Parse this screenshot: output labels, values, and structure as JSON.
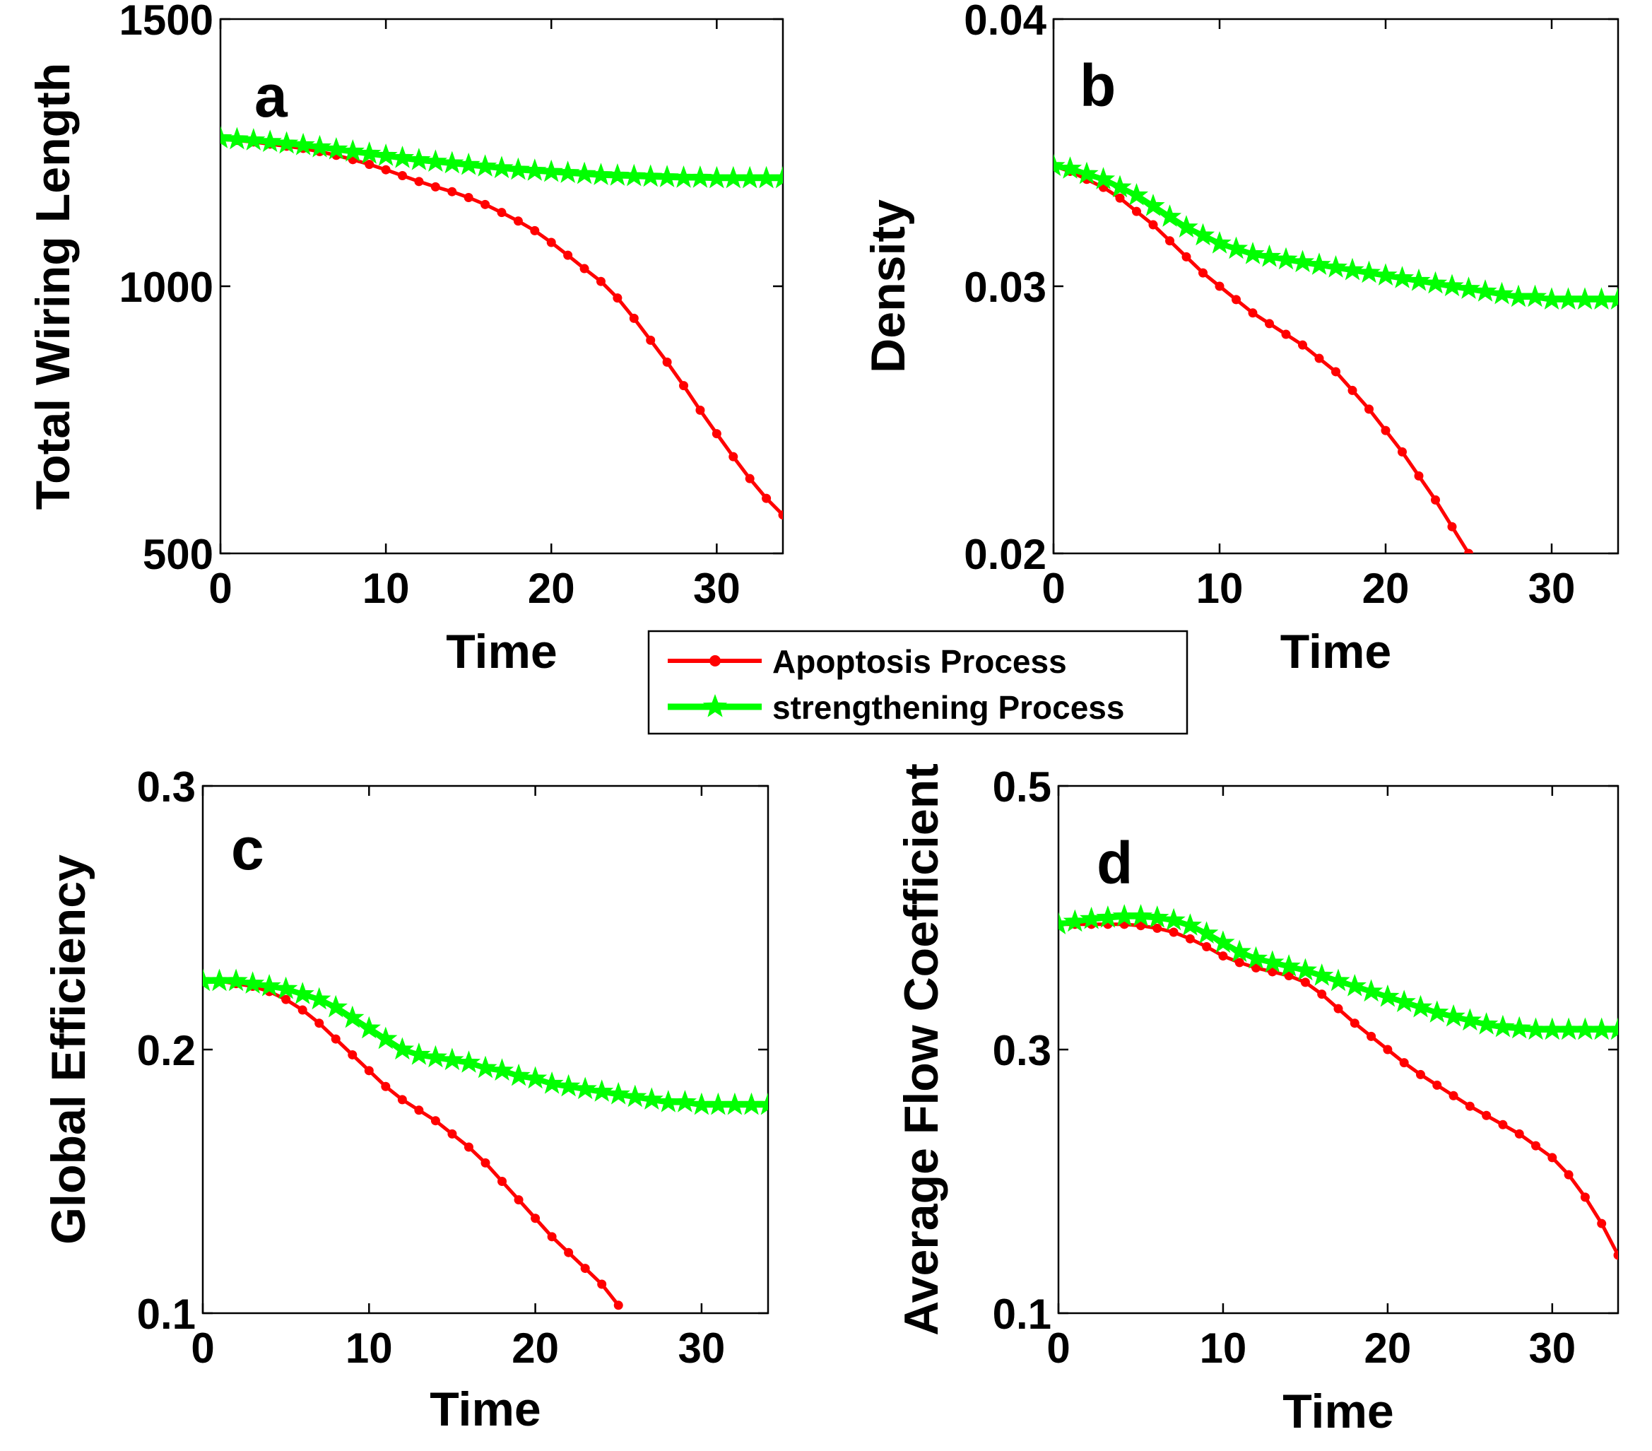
{
  "colors": {
    "apoptosis": "#ff0000",
    "strengthening": "#00ff00",
    "axes": "#000000"
  },
  "legend": {
    "entries": [
      {
        "label": "Apoptosis Process",
        "color": "#ff0000",
        "marker": "dot"
      },
      {
        "label": "strengthening Process",
        "color": "#00ff00",
        "marker": "star"
      }
    ]
  },
  "chart_data": [
    {
      "type": "line",
      "panel_label": "a",
      "xlabel": "Time",
      "ylabel": "Total Wiring Length",
      "xlim": [
        0,
        34
      ],
      "ylim": [
        500,
        1500
      ],
      "xticks": [
        0,
        10,
        20,
        30
      ],
      "yticks": [
        500,
        1000,
        1500
      ],
      "ytick_labels": [
        "500",
        "1000",
        "1500"
      ],
      "series": [
        {
          "name": "Apoptosis Process",
          "x": [
            0,
            1,
            2,
            3,
            4,
            5,
            6,
            7,
            8,
            9,
            10,
            11,
            12,
            13,
            14,
            15,
            16,
            17,
            18,
            19,
            20,
            21,
            22,
            23,
            24,
            25,
            26,
            27,
            28,
            29,
            30,
            31,
            32,
            33,
            34
          ],
          "values": [
            1275,
            1273,
            1270,
            1266,
            1262,
            1258,
            1252,
            1245,
            1237,
            1228,
            1218,
            1207,
            1196,
            1186,
            1177,
            1166,
            1153,
            1138,
            1122,
            1104,
            1082,
            1058,
            1033,
            1009,
            978,
            940,
            899,
            858,
            814,
            768,
            724,
            681,
            640,
            603,
            572
          ]
        },
        {
          "name": "strengthening Process",
          "x": [
            0,
            1,
            2,
            3,
            4,
            5,
            6,
            7,
            8,
            9,
            10,
            11,
            12,
            13,
            14,
            15,
            16,
            17,
            18,
            19,
            20,
            21,
            22,
            23,
            24,
            25,
            26,
            27,
            28,
            29,
            30,
            31,
            32,
            33,
            34
          ],
          "values": [
            1277,
            1275,
            1273,
            1270,
            1267,
            1264,
            1260,
            1256,
            1252,
            1248,
            1244,
            1240,
            1236,
            1233,
            1230,
            1227,
            1224,
            1221,
            1218,
            1216,
            1214,
            1212,
            1210,
            1208,
            1207,
            1206,
            1205,
            1204,
            1203,
            1203,
            1202,
            1202,
            1202,
            1202,
            1202
          ]
        }
      ]
    },
    {
      "type": "line",
      "panel_label": "b",
      "xlabel": "Time",
      "ylabel": "Density",
      "xlim": [
        0,
        34
      ],
      "ylim": [
        0.02,
        0.04
      ],
      "xticks": [
        0,
        10,
        20,
        30
      ],
      "yticks": [
        0.02,
        0.03,
        0.04
      ],
      "ytick_labels": [
        "0.02",
        "0.03",
        "0.04"
      ],
      "series": [
        {
          "name": "Apoptosis Process",
          "x": [
            0,
            1,
            2,
            3,
            4,
            5,
            6,
            7,
            8,
            9,
            10,
            11,
            12,
            13,
            14,
            15,
            16,
            17,
            18,
            19,
            20,
            21,
            22,
            23,
            24,
            25
          ],
          "values": [
            0.0345,
            0.0343,
            0.034,
            0.0337,
            0.0333,
            0.0328,
            0.0323,
            0.0317,
            0.0311,
            0.0305,
            0.03,
            0.0295,
            0.029,
            0.0286,
            0.0282,
            0.0278,
            0.0273,
            0.0268,
            0.0261,
            0.0254,
            0.0246,
            0.0238,
            0.0229,
            0.022,
            0.021,
            0.02
          ]
        },
        {
          "name": "strengthening Process",
          "x": [
            0,
            1,
            2,
            3,
            4,
            5,
            6,
            7,
            8,
            9,
            10,
            11,
            12,
            13,
            14,
            15,
            16,
            17,
            18,
            19,
            20,
            21,
            22,
            23,
            24,
            25,
            26,
            27,
            28,
            29,
            30,
            31,
            32,
            33,
            34
          ],
          "values": [
            0.0345,
            0.0344,
            0.0342,
            0.034,
            0.0337,
            0.0334,
            0.033,
            0.0326,
            0.0322,
            0.0319,
            0.0316,
            0.0314,
            0.0312,
            0.0311,
            0.031,
            0.0309,
            0.0308,
            0.0307,
            0.0306,
            0.0305,
            0.0304,
            0.0303,
            0.0302,
            0.0301,
            0.03,
            0.0299,
            0.0298,
            0.0297,
            0.0296,
            0.0296,
            0.0295,
            0.0295,
            0.0295,
            0.0295,
            0.0295
          ]
        }
      ]
    },
    {
      "type": "line",
      "panel_label": "c",
      "xlabel": "Time",
      "ylabel": "Global Efficiency",
      "xlim": [
        0,
        34
      ],
      "ylim": [
        0.1,
        0.3
      ],
      "xticks": [
        0,
        10,
        20,
        30
      ],
      "yticks": [
        0.1,
        0.2,
        0.3
      ],
      "ytick_labels": [
        "0.1",
        "0.2",
        "0.3"
      ],
      "series": [
        {
          "name": "Apoptosis Process",
          "x": [
            0,
            1,
            2,
            3,
            4,
            5,
            6,
            7,
            8,
            9,
            10,
            11,
            12,
            13,
            14,
            15,
            16,
            17,
            18,
            19,
            20,
            21,
            22,
            23,
            24,
            25
          ],
          "values": [
            0.226,
            0.226,
            0.225,
            0.224,
            0.222,
            0.219,
            0.215,
            0.21,
            0.204,
            0.198,
            0.192,
            0.186,
            0.181,
            0.177,
            0.173,
            0.168,
            0.163,
            0.157,
            0.15,
            0.143,
            0.136,
            0.129,
            0.123,
            0.117,
            0.111,
            0.103
          ]
        },
        {
          "name": "strengthening Process",
          "x": [
            0,
            1,
            2,
            3,
            4,
            5,
            6,
            7,
            8,
            9,
            10,
            11,
            12,
            13,
            14,
            15,
            16,
            17,
            18,
            19,
            20,
            21,
            22,
            23,
            24,
            25,
            26,
            27,
            28,
            29,
            30,
            31,
            32,
            33,
            34
          ],
          "values": [
            0.226,
            0.226,
            0.226,
            0.225,
            0.224,
            0.223,
            0.221,
            0.219,
            0.216,
            0.212,
            0.208,
            0.204,
            0.2,
            0.198,
            0.197,
            0.196,
            0.195,
            0.193,
            0.192,
            0.19,
            0.189,
            0.187,
            0.186,
            0.185,
            0.184,
            0.183,
            0.182,
            0.181,
            0.18,
            0.18,
            0.179,
            0.179,
            0.179,
            0.179,
            0.179
          ]
        }
      ]
    },
    {
      "type": "line",
      "panel_label": "d",
      "xlabel": "Time",
      "ylabel": "Average Flow Coefficient",
      "xlim": [
        0,
        34
      ],
      "ylim": [
        0.1,
        0.5
      ],
      "xticks": [
        0,
        10,
        20,
        30
      ],
      "yticks": [
        0.1,
        0.3,
        0.5
      ],
      "ytick_labels": [
        "0.1",
        "0.3",
        "0.5"
      ],
      "series": [
        {
          "name": "Apoptosis Process",
          "x": [
            0,
            1,
            2,
            3,
            4,
            5,
            6,
            7,
            8,
            9,
            10,
            11,
            12,
            13,
            14,
            15,
            16,
            17,
            18,
            19,
            20,
            21,
            22,
            23,
            24,
            25,
            26,
            27,
            28,
            29,
            30,
            31,
            32,
            33,
            34
          ],
          "values": [
            0.395,
            0.395,
            0.395,
            0.395,
            0.395,
            0.394,
            0.392,
            0.389,
            0.384,
            0.378,
            0.371,
            0.366,
            0.362,
            0.359,
            0.356,
            0.351,
            0.342,
            0.331,
            0.32,
            0.31,
            0.3,
            0.29,
            0.281,
            0.273,
            0.265,
            0.257,
            0.25,
            0.243,
            0.236,
            0.227,
            0.218,
            0.205,
            0.188,
            0.168,
            0.144
          ]
        },
        {
          "name": "strengthening Process",
          "x": [
            0,
            1,
            2,
            3,
            4,
            5,
            6,
            7,
            8,
            9,
            10,
            11,
            12,
            13,
            14,
            15,
            16,
            17,
            18,
            19,
            20,
            21,
            22,
            23,
            24,
            25,
            26,
            27,
            28,
            29,
            30,
            31,
            32,
            33,
            34
          ],
          "values": [
            0.395,
            0.397,
            0.399,
            0.4,
            0.401,
            0.401,
            0.4,
            0.398,
            0.394,
            0.388,
            0.381,
            0.374,
            0.369,
            0.366,
            0.363,
            0.36,
            0.356,
            0.352,
            0.348,
            0.344,
            0.34,
            0.336,
            0.332,
            0.328,
            0.325,
            0.322,
            0.319,
            0.317,
            0.316,
            0.315,
            0.315,
            0.315,
            0.315,
            0.315,
            0.315
          ]
        }
      ]
    }
  ]
}
